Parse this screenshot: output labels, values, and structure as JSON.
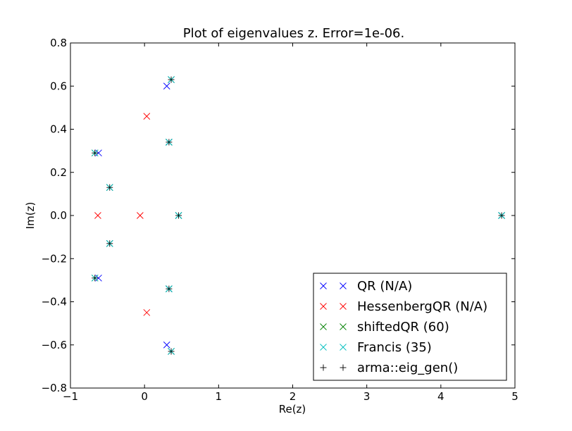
{
  "chart_data": {
    "type": "scatter",
    "title": "Plot of eigenvalues z. Error=1e-06.",
    "xlabel": "Re(z)",
    "ylabel": "Im(z)",
    "xlim": [
      -1,
      5
    ],
    "ylim": [
      -0.8,
      0.8
    ],
    "xticks": [
      -1,
      0,
      1,
      2,
      3,
      4,
      5
    ],
    "xtick_labels": [
      "−1",
      "0",
      "1",
      "2",
      "3",
      "4",
      "5"
    ],
    "yticks": [
      -0.8,
      -0.6,
      -0.4,
      -0.2,
      0.0,
      0.2,
      0.4,
      0.6,
      0.8
    ],
    "ytick_labels": [
      "−0.8",
      "−0.6",
      "−0.4",
      "−0.2",
      "0.0",
      "0.2",
      "0.4",
      "0.6",
      "0.8"
    ],
    "legend_position": "lower-right",
    "series": [
      {
        "name": "QR (N/A)",
        "marker": "x",
        "color": "#0000ff",
        "points": [
          [
            -0.62,
            0.29
          ],
          [
            -0.62,
            -0.29
          ],
          [
            0.3,
            0.6
          ],
          [
            0.3,
            -0.6
          ],
          [
            -0.47,
            0.13
          ],
          [
            -0.47,
            -0.13
          ],
          [
            0.33,
            0.34
          ],
          [
            0.33,
            -0.34
          ],
          [
            0.46,
            0.0
          ],
          [
            4.82,
            0.0
          ],
          [
            0.36,
            0.63
          ],
          [
            0.36,
            -0.63
          ]
        ]
      },
      {
        "name": "HessenbergQR (N/A)",
        "marker": "x",
        "color": "#ff0000",
        "points": [
          [
            -0.63,
            0.0
          ],
          [
            -0.06,
            0.0
          ],
          [
            0.03,
            0.46
          ],
          [
            0.03,
            -0.45
          ]
        ]
      },
      {
        "name": "shiftedQR (60)",
        "marker": "x",
        "color": "#008000",
        "points": [
          [
            -0.67,
            0.29
          ],
          [
            -0.67,
            -0.29
          ],
          [
            -0.47,
            0.13
          ],
          [
            -0.47,
            -0.13
          ],
          [
            0.33,
            0.34
          ],
          [
            0.33,
            -0.34
          ],
          [
            0.46,
            0.0
          ],
          [
            0.36,
            0.63
          ],
          [
            0.36,
            -0.63
          ],
          [
            4.82,
            0.0
          ]
        ]
      },
      {
        "name": "Francis (35)",
        "marker": "x",
        "color": "#00bfbf",
        "points": [
          [
            -0.67,
            0.29
          ],
          [
            -0.67,
            -0.29
          ],
          [
            -0.47,
            0.13
          ],
          [
            -0.47,
            -0.13
          ],
          [
            0.33,
            0.34
          ],
          [
            0.33,
            -0.34
          ],
          [
            0.46,
            0.0
          ],
          [
            0.36,
            0.63
          ],
          [
            0.36,
            -0.63
          ],
          [
            4.82,
            0.0
          ]
        ]
      },
      {
        "name": "arma::eig_gen()",
        "marker": "+",
        "color": "#000000",
        "points": [
          [
            -0.67,
            0.29
          ],
          [
            -0.67,
            -0.29
          ],
          [
            -0.47,
            0.13
          ],
          [
            -0.47,
            -0.13
          ],
          [
            0.33,
            0.34
          ],
          [
            0.33,
            -0.34
          ],
          [
            0.46,
            0.0
          ],
          [
            0.36,
            0.63
          ],
          [
            0.36,
            -0.63
          ],
          [
            4.82,
            0.0
          ]
        ]
      }
    ]
  }
}
